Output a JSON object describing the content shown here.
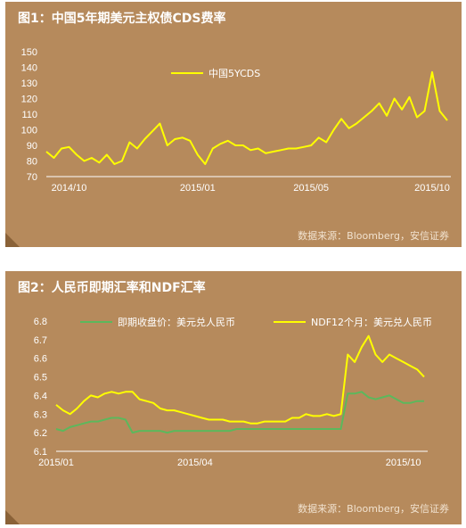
{
  "colors": {
    "panel_bg": "#b68a5c",
    "yellow": "#ffff00",
    "green": "#5cb85c",
    "text": "#ffffff"
  },
  "chart_data": [
    {
      "type": "line",
      "title": "图1：中国5年期美元主权债CDS费率",
      "source": "数据来源：Bloomberg，安信证券",
      "ylim": [
        70,
        150
      ],
      "y_ticks": [
        "70",
        "80",
        "90",
        "100",
        "110",
        "120",
        "130",
        "140",
        "150"
      ],
      "x_tick_labels": [
        "2014/10",
        "2015/01",
        "2015/05",
        "2015/10"
      ],
      "x_tick_index": [
        3,
        20,
        35,
        51
      ],
      "grid": false,
      "legend": "top-center",
      "series": [
        {
          "name": "中国5YCDS",
          "color": "#ffff00",
          "values": [
            86,
            82,
            88,
            89,
            84,
            80,
            82,
            79,
            84,
            78,
            80,
            92,
            88,
            94,
            99,
            104,
            90,
            94,
            95,
            93,
            84,
            78,
            88,
            91,
            93,
            90,
            90,
            87,
            88,
            85,
            86,
            87,
            88,
            88,
            89,
            90,
            95,
            92,
            100,
            107,
            101,
            104,
            108,
            112,
            117,
            109,
            120,
            113,
            121,
            108,
            112,
            137,
            112,
            106
          ]
        }
      ]
    },
    {
      "type": "line",
      "title": "图2：人民币即期汇率和NDF汇率",
      "source": "数据来源：Bloomberg，安信证券",
      "ylim": [
        6.1,
        6.8
      ],
      "y_ticks": [
        "6.1",
        "6.2",
        "6.3",
        "6.4",
        "6.5",
        "6.6",
        "6.7",
        "6.8"
      ],
      "x_tick_labels": [
        "2015/01",
        "2015/04",
        "2015/10"
      ],
      "x_tick_index": [
        0,
        20,
        50
      ],
      "grid": false,
      "legend": "top",
      "series": [
        {
          "name": "即期收盘价：美元兑人民币",
          "color": "#5cb85c",
          "values": [
            6.22,
            6.21,
            6.23,
            6.24,
            6.25,
            6.26,
            6.26,
            6.27,
            6.28,
            6.28,
            6.27,
            6.2,
            6.21,
            6.21,
            6.21,
            6.21,
            6.2,
            6.21,
            6.21,
            6.21,
            6.21,
            6.21,
            6.21,
            6.21,
            6.21,
            6.21,
            6.22,
            6.22,
            6.22,
            6.22,
            6.22,
            6.22,
            6.22,
            6.22,
            6.22,
            6.22,
            6.22,
            6.22,
            6.22,
            6.22,
            6.22,
            6.22,
            6.41,
            6.41,
            6.42,
            6.39,
            6.38,
            6.39,
            6.4,
            6.38,
            6.36,
            6.36,
            6.37,
            6.37
          ]
        },
        {
          "name": "NDF12个月：美元兑人民币",
          "color": "#ffff00",
          "values": [
            6.35,
            6.32,
            6.3,
            6.33,
            6.37,
            6.4,
            6.39,
            6.41,
            6.42,
            6.41,
            6.42,
            6.42,
            6.38,
            6.37,
            6.36,
            6.33,
            6.32,
            6.32,
            6.31,
            6.3,
            6.29,
            6.28,
            6.27,
            6.27,
            6.27,
            6.26,
            6.26,
            6.26,
            6.25,
            6.25,
            6.26,
            6.26,
            6.26,
            6.26,
            6.28,
            6.28,
            6.3,
            6.29,
            6.29,
            6.3,
            6.29,
            6.3,
            6.62,
            6.58,
            6.66,
            6.72,
            6.62,
            6.58,
            6.62,
            6.6,
            6.58,
            6.56,
            6.54,
            6.5
          ]
        }
      ]
    }
  ]
}
